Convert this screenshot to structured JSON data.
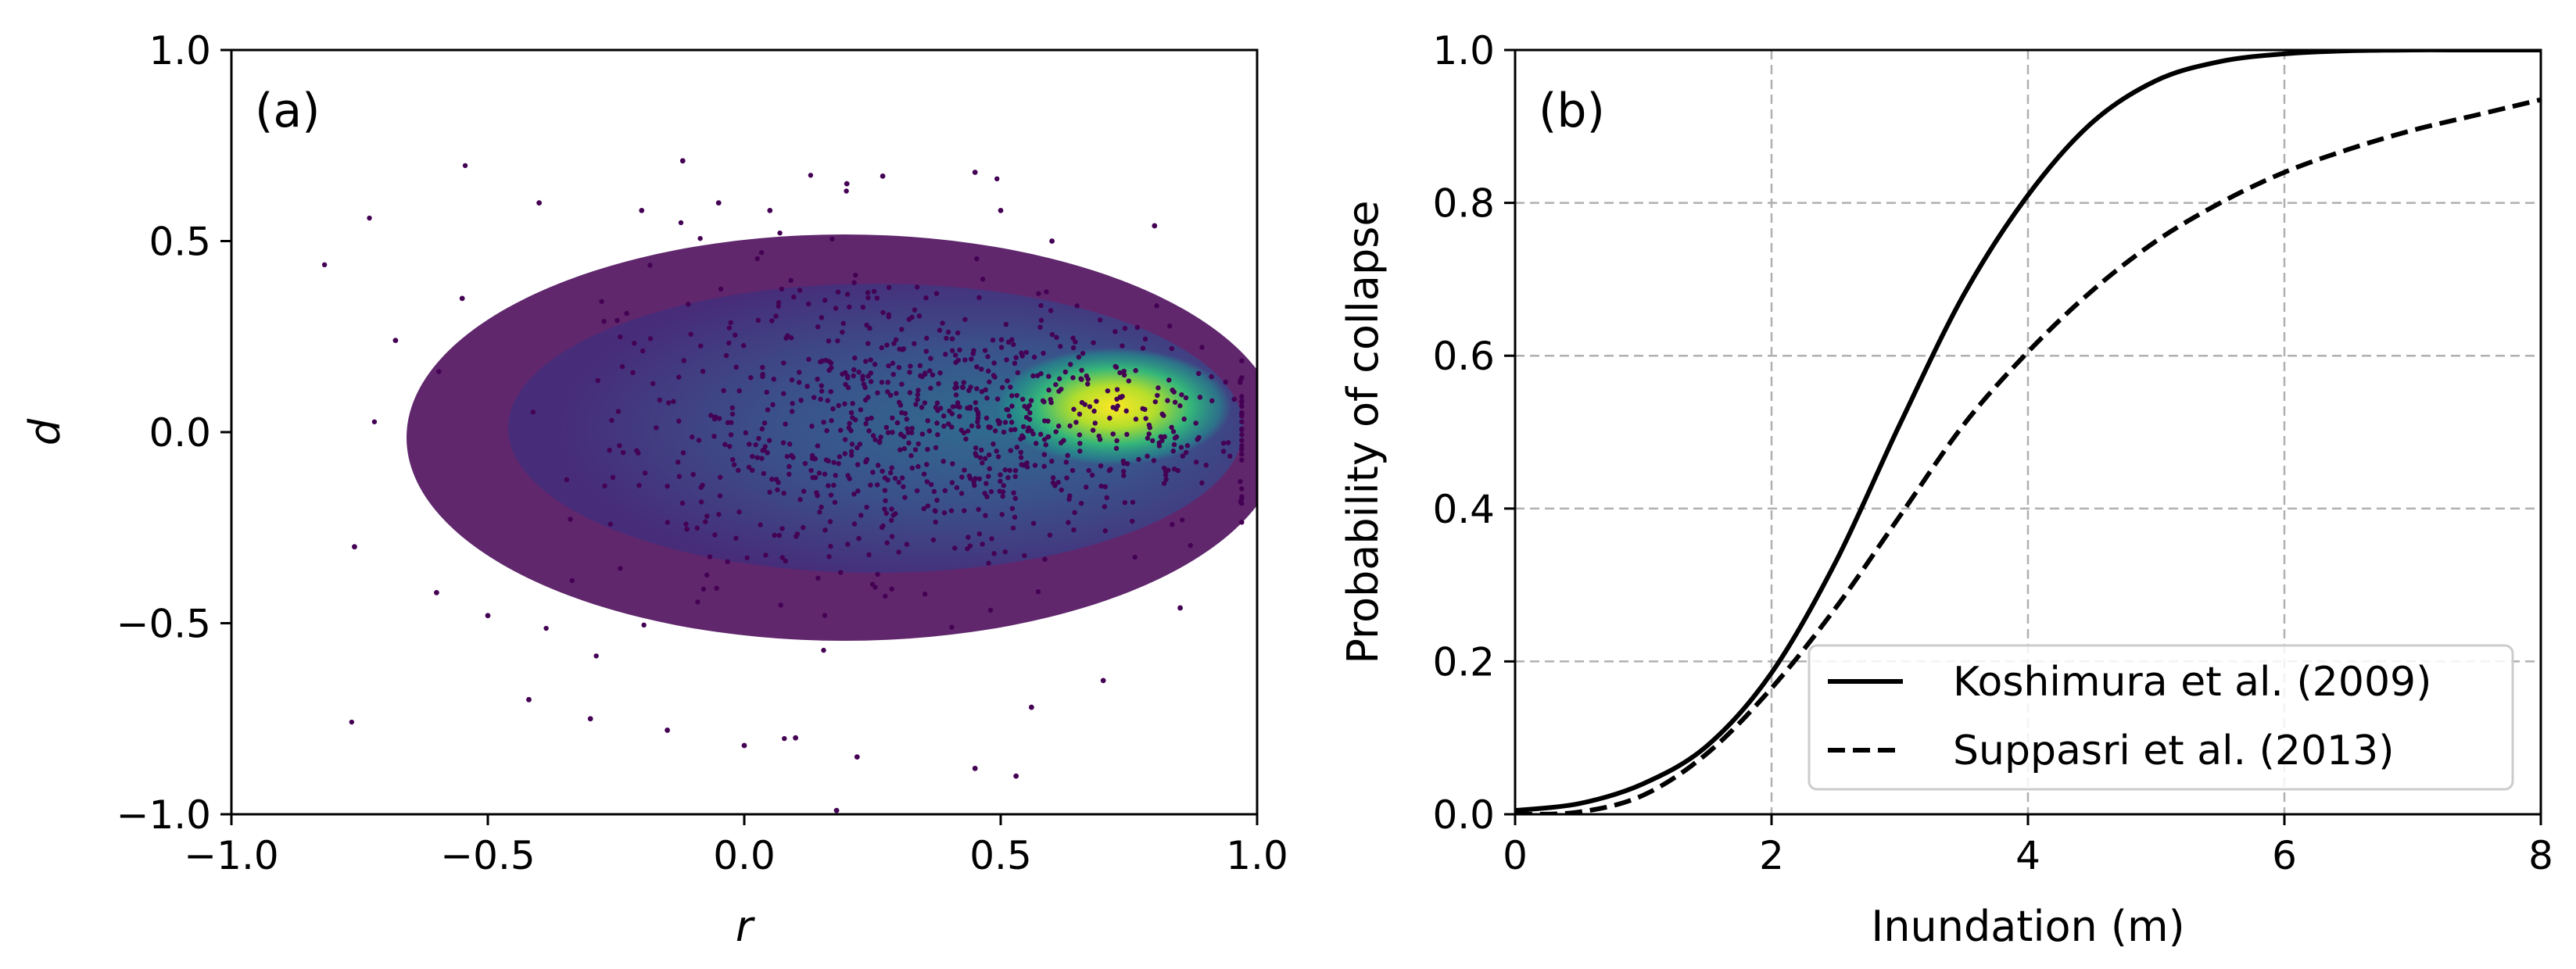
{
  "chart_data": [
    {
      "type": "scatter",
      "panel_label": "(a)",
      "title": "",
      "xlabel": "r",
      "ylabel": "d",
      "xlim": [
        -1.0,
        1.0
      ],
      "ylim": [
        -1.0,
        1.0
      ],
      "xticks": [
        "−1.0",
        "−0.5",
        "0.0",
        "0.5",
        "1.0"
      ],
      "yticks": [
        "1.0",
        "0.5",
        "0.0",
        "−0.5",
        "−1.0"
      ],
      "xtick_values": [
        -1.0,
        -0.5,
        0.0,
        0.5,
        1.0
      ],
      "ytick_values": [
        1.0,
        0.5,
        0.0,
        -0.5,
        -1.0
      ],
      "grid": false,
      "colormap": "viridis",
      "density_center": [
        0.73,
        0.05
      ],
      "outliers": [
        [
          -0.76,
          -0.3
        ],
        [
          -0.68,
          0.24
        ],
        [
          -0.6,
          -0.42
        ],
        [
          -0.55,
          0.35
        ],
        [
          -0.5,
          -0.48
        ],
        [
          -0.42,
          -0.7
        ],
        [
          -0.4,
          0.6
        ],
        [
          -0.3,
          -0.75
        ],
        [
          -0.2,
          0.58
        ],
        [
          -0.15,
          -0.78
        ],
        [
          -0.12,
          0.71
        ],
        [
          -0.05,
          0.6
        ],
        [
          0.0,
          -0.82
        ],
        [
          0.05,
          0.58
        ],
        [
          0.1,
          -0.8
        ],
        [
          0.22,
          -0.85
        ],
        [
          0.2,
          0.65
        ],
        [
          0.27,
          0.67
        ],
        [
          0.45,
          0.68
        ],
        [
          0.45,
          -0.88
        ],
        [
          0.53,
          -0.9
        ],
        [
          0.5,
          0.58
        ],
        [
          0.56,
          -0.72
        ],
        [
          0.6,
          0.5
        ],
        [
          0.7,
          -0.65
        ],
        [
          0.8,
          0.54
        ],
        [
          0.85,
          -0.46
        ],
        [
          0.18,
          -0.99
        ]
      ],
      "colors": {
        "low": "#440154",
        "mid": "#21918c",
        "high": "#fde725"
      }
    },
    {
      "type": "line",
      "panel_label": "(b)",
      "title": "",
      "xlabel": "Inundation (m)",
      "ylabel": "Probability of collapse",
      "xlim": [
        0,
        8
      ],
      "ylim": [
        0.0,
        1.0
      ],
      "xticks": [
        "0",
        "2",
        "4",
        "6",
        "8"
      ],
      "yticks": [
        "1.0",
        "0.8",
        "0.6",
        "0.4",
        "0.2",
        "0.0"
      ],
      "xtick_values": [
        0,
        2,
        4,
        6,
        8
      ],
      "ytick_values": [
        1.0,
        0.8,
        0.6,
        0.4,
        0.2,
        0.0
      ],
      "grid": true,
      "legend_position": "lower-right",
      "series": [
        {
          "name": "Koshimura et al. (2009)",
          "style": "solid",
          "x": [
            0,
            0.5,
            1.0,
            1.5,
            2.0,
            2.5,
            3.0,
            3.5,
            4.0,
            4.5,
            5.0,
            5.5,
            6.0,
            6.5,
            7.0,
            7.5,
            8.0
          ],
          "y": [
            0.005,
            0.014,
            0.04,
            0.09,
            0.185,
            0.33,
            0.51,
            0.68,
            0.81,
            0.905,
            0.96,
            0.985,
            0.995,
            0.999,
            1.0,
            1.0,
            1.0
          ]
        },
        {
          "name": "Suppasri et al. (2013)",
          "style": "dashed",
          "x": [
            0,
            0.5,
            1.0,
            1.5,
            2.0,
            2.5,
            3.0,
            3.5,
            4.0,
            4.5,
            5.0,
            5.5,
            6.0,
            6.5,
            7.0,
            7.5,
            8.0
          ],
          "y": [
            0.0,
            0.003,
            0.025,
            0.08,
            0.165,
            0.27,
            0.39,
            0.51,
            0.605,
            0.685,
            0.75,
            0.8,
            0.84,
            0.87,
            0.895,
            0.915,
            0.935
          ]
        }
      ]
    }
  ]
}
